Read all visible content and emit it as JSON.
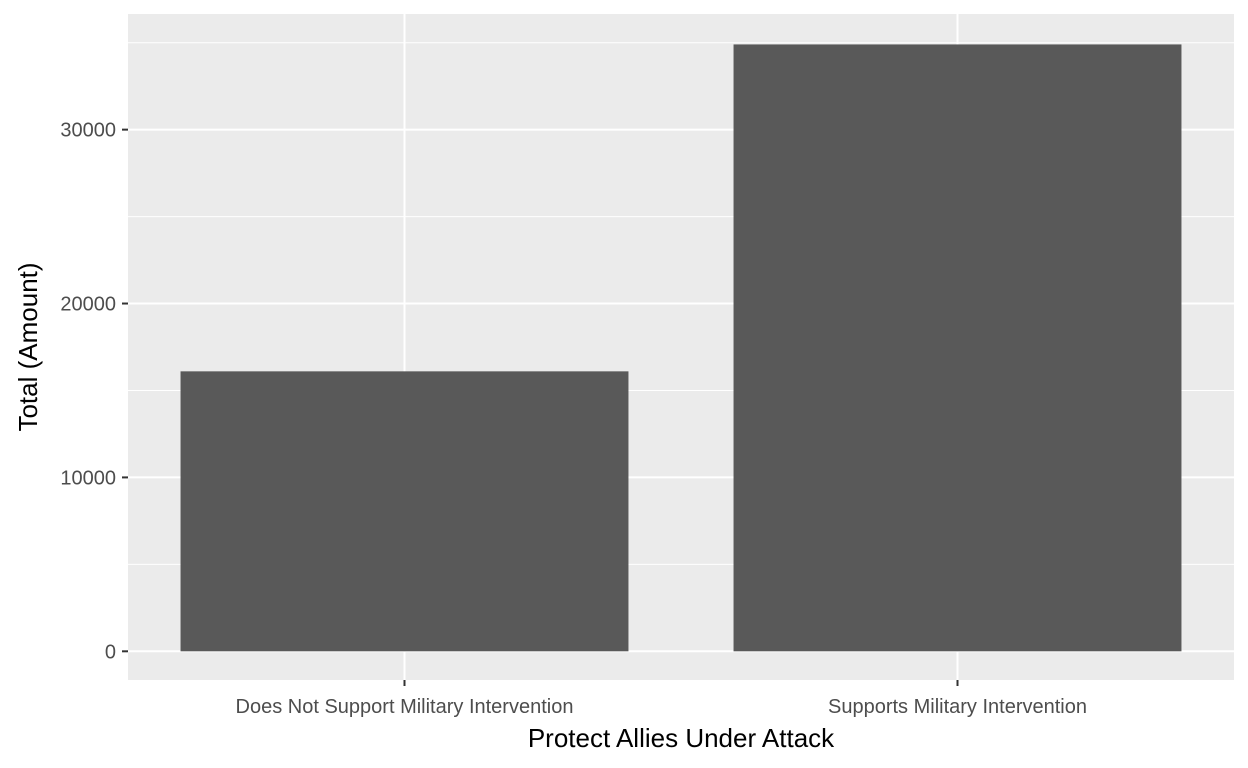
{
  "chart_data": {
    "type": "bar",
    "categories": [
      "Does Not Support Military Intervention",
      "Supports Military Intervention"
    ],
    "values": [
      16100,
      34900
    ],
    "title": "",
    "xlabel": "Protect Allies Under Attack",
    "ylabel": "Total (Amount)",
    "ylim": [
      -1650,
      36650
    ],
    "yticks": [
      0,
      10000,
      20000,
      30000
    ],
    "grid": true,
    "legend": "none",
    "colors": {
      "panel": "#ebebeb",
      "grid": "#ffffff",
      "bar": "#595959",
      "tick_text": "#4d4d4d",
      "tick_mark": "#333333",
      "title_text": "#000000"
    }
  }
}
